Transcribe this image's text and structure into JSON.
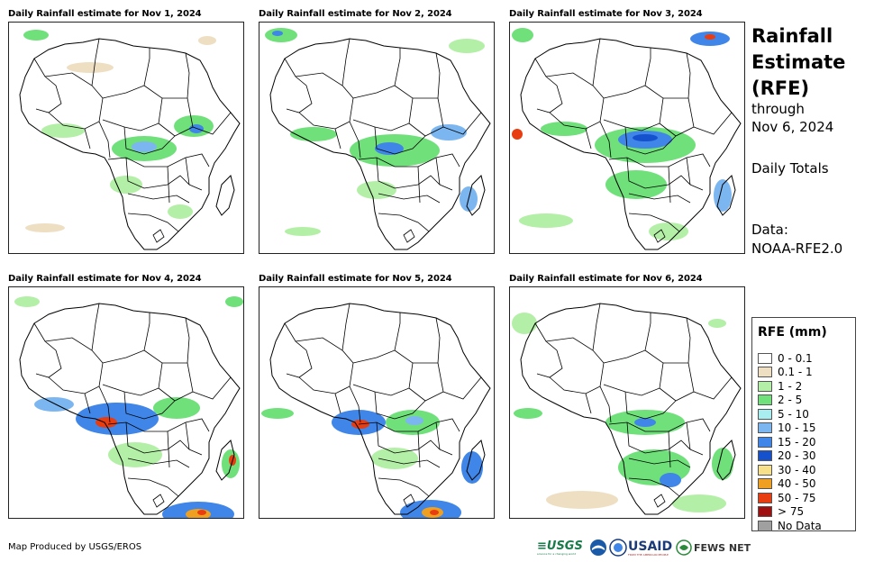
{
  "panels": [
    {
      "title": "Daily Rainfall estimate for Nov 1, 2024"
    },
    {
      "title": "Daily Rainfall estimate for Nov 2, 2024"
    },
    {
      "title": "Daily Rainfall estimate for Nov 3, 2024"
    },
    {
      "title": "Daily Rainfall estimate for Nov 4, 2024"
    },
    {
      "title": "Daily Rainfall estimate for Nov 5, 2024"
    },
    {
      "title": "Daily Rainfall estimate for Nov 6, 2024"
    }
  ],
  "side": {
    "title_lines": [
      "Rainfall",
      "Estimate",
      "(RFE)"
    ],
    "through": "through",
    "through_date": "Nov 6, 2024",
    "period": "Daily Totals",
    "data_label": "Data:",
    "data_source": "NOAA-RFE2.0"
  },
  "legend": {
    "title": "RFE (mm)",
    "items": [
      {
        "label": "0 - 0.1",
        "color": "#ffffff"
      },
      {
        "label": "0.1 - 1",
        "color": "#eedfc3"
      },
      {
        "label": "1 - 2",
        "color": "#b3efa6"
      },
      {
        "label": "2 - 5",
        "color": "#6fe07a"
      },
      {
        "label": "5 - 10",
        "color": "#a8eef0"
      },
      {
        "label": "10 - 15",
        "color": "#7cb6f0"
      },
      {
        "label": "15 - 20",
        "color": "#3f86e8"
      },
      {
        "label": "20 - 30",
        "color": "#1551cc"
      },
      {
        "label": "30 - 40",
        "color": "#f6e08a"
      },
      {
        "label": "40 - 50",
        "color": "#f0a020"
      },
      {
        "label": "50 - 75",
        "color": "#e83d10"
      },
      {
        "label": "> 75",
        "color": "#a01010"
      },
      {
        "label": "No Data",
        "color": "#a0a0a0"
      }
    ]
  },
  "footer": {
    "credit": "Map Produced by USGS/EROS",
    "logos": {
      "usgs": "≡USGS",
      "usgs_tagline": "science for a changing world",
      "usaid": "USAID",
      "usaid_tagline": "FROM THE AMERICAN PEOPLE",
      "fews": "FEWS NET"
    }
  }
}
